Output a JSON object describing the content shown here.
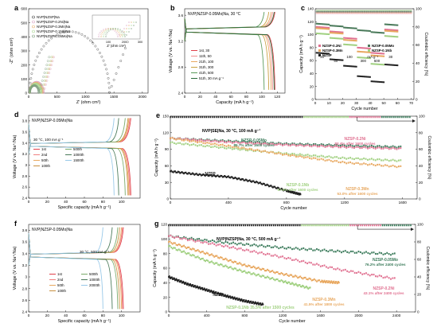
{
  "chart_data": [
    {
      "panel": "a",
      "type": "scatter",
      "xlabel": "Z′ (ohm cm²)",
      "ylabel": "-Z″ (ohm cm²)",
      "xlim": [
        0,
        2100
      ],
      "ylim": [
        0,
        600
      ],
      "xticks": [
        0,
        500,
        1000,
        1500,
        2000
      ],
      "yticks": [
        0,
        100,
        200,
        300,
        400,
        500,
        600
      ],
      "inset_xlabel": "Z′ (ohm cm²)",
      "inset_xticks": [
        0,
        100,
        200,
        300
      ],
      "series": [
        {
          "name": "NVP|NZSP|Na",
          "color": "#444444"
        },
        {
          "name": "NVP|NZSP-0.2Ni|Na",
          "color": "#d9a0c0"
        },
        {
          "name": "NVP|NZSP-0.3Mn|Na",
          "color": "#e8b070"
        },
        {
          "name": "NVP|NZSP-0.1Nb|Na",
          "color": "#a8d890"
        },
        {
          "name": "NVP|NZSP-0.05Mo|Na",
          "color": "#7a9a7a"
        }
      ]
    },
    {
      "panel": "b",
      "type": "line",
      "title": "NVP|NZSP-0.05Mo|Na, 30 °C",
      "xlabel": "Capacity (mA h g⁻¹)",
      "ylabel": "Voltage (V vs. Na⁺/Na)",
      "xlim": [
        0,
        130
      ],
      "ylim": [
        2.4,
        3.7
      ],
      "xticks": [
        0,
        20,
        40,
        60,
        80,
        100,
        120
      ],
      "yticks": [
        2.4,
        2.8,
        3.2,
        3.6
      ],
      "legend": [
        "1st, 30",
        "11th, 50",
        "21th, 100",
        "31th, 300",
        "41th, 500",
        "51th, 30 mA g⁻¹"
      ],
      "discharge_capacity": [
        117,
        114,
        112,
        109,
        103,
        116
      ],
      "colors": [
        "#e0404a",
        "#f09090",
        "#e8a860",
        "#c8a040",
        "#5a9a5a",
        "#2a6a3a"
      ]
    },
    {
      "panel": "c",
      "type": "scatter",
      "xlabel": "Cycle number",
      "ylabel": "Capacity (mA h g⁻¹)",
      "y2label": "Coulombic efficiency (%)",
      "xlim": [
        0,
        72
      ],
      "ylim": [
        0,
        140
      ],
      "y2lim": [
        0,
        100
      ],
      "xticks": [
        0,
        10,
        20,
        30,
        40,
        50,
        60,
        70
      ],
      "yticks": [
        0,
        20,
        40,
        60,
        80,
        100,
        120,
        140
      ],
      "y2ticks": [
        0,
        20,
        40,
        60,
        80,
        100
      ],
      "rates": [
        "30",
        "50",
        "100",
        "300",
        "mA g⁻¹",
        "500",
        "30"
      ],
      "rate_cycles": [
        5,
        15,
        25,
        35,
        42,
        45,
        55
      ],
      "series": [
        {
          "name": "NZSP-0.2Ni",
          "color": "#e07090",
          "values": [
            112,
            105,
            95,
            80,
            72,
            108
          ]
        },
        {
          "name": "NZSP-0.3Mn",
          "color": "#e8a860",
          "values": [
            110,
            103,
            92,
            74,
            68,
            106
          ]
        },
        {
          "name": "NZSP",
          "color": "#222222",
          "values": [
            72,
            62,
            52,
            36,
            28,
            54
          ]
        },
        {
          "name": "NZSP-0.05Mo",
          "color": "#4a7a5a",
          "values": [
            117,
            114,
            111,
            107,
            104,
            116
          ]
        },
        {
          "name": "NZSP-0.1Nb",
          "color": "#a0d080",
          "values": [
            102,
            95,
            85,
            65,
            55,
            98
          ]
        }
      ]
    },
    {
      "panel": "d",
      "type": "line",
      "title": "NVP|NZSP-0.05Mo|Na",
      "note": "30 °C, 100 mA g⁻¹",
      "xlabel": "Specific capacity (mA h g⁻¹)",
      "ylabel": "Voltage (V vs. Na⁺/Na)",
      "xlim": [
        0,
        120
      ],
      "ylim": [
        2.4,
        3.9
      ],
      "xticks": [
        0,
        20,
        40,
        60,
        80,
        100
      ],
      "yticks": [
        2.4,
        2.6,
        2.8,
        3.0,
        3.2,
        3.4,
        3.6,
        3.8
      ],
      "legend": [
        "1st",
        "2nd",
        "50th",
        "100th",
        "500th",
        "1000th",
        "1500th"
      ],
      "discharge_capacity": [
        110,
        109,
        108,
        107,
        104,
        97,
        92
      ],
      "colors": [
        "#e0404a",
        "#f08080",
        "#e8a860",
        "#c89040",
        "#7aaa6a",
        "#4a7a5a",
        "#98c8e8"
      ]
    },
    {
      "panel": "e",
      "type": "scatter",
      "title": "NVP|SE|Na, 30 °C, 100 mA g⁻¹",
      "xlabel": "Cycle number",
      "ylabel": "Capacity (mA h g⁻¹)",
      "y2label": "Coulombic efficiency (%)",
      "xlim": [
        0,
        1700
      ],
      "ylim": [
        0,
        150
      ],
      "y2lim": [
        0,
        100
      ],
      "xticks": [
        0,
        400,
        800,
        1200,
        1600
      ],
      "yticks": [
        0,
        30,
        60,
        90,
        120,
        150
      ],
      "y2ticks": [
        0,
        20,
        40,
        60,
        80,
        100
      ],
      "annotations": [
        {
          "text": "NZSP-0.05Mo",
          "sub": "85.7% after 1600 cycles",
          "color": "#3a7a5a"
        },
        {
          "text": "NZSP-0.2Ni",
          "sub": "83.4% after 1600 cycles",
          "color": "#e07090"
        },
        {
          "text": "NZSP",
          "sub": "",
          "color": "#222222"
        },
        {
          "text": "NZSP-0.1Nb",
          "sub": "67.6% after 1600 cycles",
          "color": "#a0d080"
        },
        {
          "text": "NZSP-0.3Mn",
          "sub": "53.0% after 1600 cycles",
          "color": "#e8a860"
        }
      ],
      "series": [
        {
          "name": "NZSP-0.05Mo",
          "color": "#3a7a5a",
          "x": [
            0,
            400,
            800,
            1200,
            1600
          ],
          "y": [
            110,
            105,
            100,
            97,
            94
          ]
        },
        {
          "name": "NZSP-0.2Ni",
          "color": "#e07090",
          "x": [
            0,
            400,
            800,
            1200,
            1600
          ],
          "y": [
            110,
            103,
            98,
            94,
            91
          ]
        },
        {
          "name": "NZSP-0.1Nb",
          "color": "#a0d080",
          "x": [
            0,
            400,
            800,
            1200,
            1600
          ],
          "y": [
            102,
            92,
            82,
            74,
            69
          ]
        },
        {
          "name": "NZSP-0.3Mn",
          "color": "#e8a860",
          "x": [
            0,
            400,
            800,
            1200,
            1600
          ],
          "y": [
            110,
            96,
            80,
            66,
            58
          ]
        },
        {
          "name": "NZSP",
          "color": "#222222",
          "x": [
            0,
            200,
            400,
            600,
            800,
            900
          ],
          "y": [
            50,
            44,
            40,
            30,
            15,
            8
          ]
        }
      ]
    },
    {
      "panel": "f",
      "type": "line",
      "title": "NVP|NZSP-0.05Mo|Na",
      "note": "30 °C, 500 mA g⁻¹",
      "xlabel": "Specific capacity (mA h g⁻¹)",
      "ylabel": "Voltage (V vs. Na⁺/Na)",
      "xlim": [
        0,
        120
      ],
      "ylim": [
        2.4,
        3.9
      ],
      "xticks": [
        0,
        20,
        40,
        60,
        80,
        100
      ],
      "yticks": [
        2.4,
        2.6,
        2.8,
        3.0,
        3.2,
        3.4,
        3.6,
        3.8
      ],
      "legend": [
        "1st",
        "2nd",
        "50th",
        "100th",
        "500th",
        "1000th",
        "2000th"
      ],
      "discharge_capacity": [
        102,
        101,
        100,
        98,
        96,
        90,
        80
      ],
      "colors": [
        "#e0404a",
        "#f08080",
        "#e8a860",
        "#c89040",
        "#7aaa6a",
        "#4a7a5a",
        "#98c8e8"
      ]
    },
    {
      "panel": "g",
      "type": "scatter",
      "title": "NVP|NZSP|Na, 30 °C, 500 mA g⁻¹",
      "xlabel": "Cycle number",
      "ylabel": "Capacity (mA h g⁻¹)",
      "y2label": "Coulombic efficiency (%)",
      "xlim": [
        0,
        2600
      ],
      "ylim": [
        0,
        120
      ],
      "y2lim": [
        0,
        100
      ],
      "xticks": [
        0,
        400,
        800,
        1200,
        1600,
        2000,
        2400
      ],
      "yticks": [
        0,
        20,
        40,
        60,
        80,
        100,
        120
      ],
      "y2ticks": [
        0,
        20,
        40,
        60,
        80,
        100
      ],
      "annotations": [
        {
          "text": "NZSP-0.05Mo",
          "sub": "76.2% after 2400 cycles",
          "color": "#3a7a5a"
        },
        {
          "text": "NZSP-0.2Ni",
          "sub": "43.1% after 2400 cycles",
          "color": "#e07090"
        },
        {
          "text": "NZSP",
          "sub": "",
          "color": "#222222"
        },
        {
          "text": "NZSP-0.1Nb 35.5% after 1500 cycles",
          "sub": "",
          "color": "#a0d080"
        },
        {
          "text": "NZSP-0.3Mn",
          "sub": "41.5% after 1800 cycles",
          "color": "#e8a860"
        }
      ],
      "series": [
        {
          "name": "NZSP-0.05Mo",
          "color": "#3a7a5a",
          "x": [
            0,
            600,
            1200,
            1800,
            2400
          ],
          "y": [
            104,
            95,
            88,
            83,
            79
          ]
        },
        {
          "name": "NZSP-0.2Ni",
          "color": "#e07090",
          "x": [
            0,
            600,
            1200,
            1800,
            2400
          ],
          "y": [
            104,
            90,
            75,
            58,
            45
          ]
        },
        {
          "name": "NZSP-0.3Mn",
          "color": "#e8a860",
          "x": [
            0,
            400,
            800,
            1200,
            1600,
            1800
          ],
          "y": [
            96,
            80,
            64,
            52,
            42,
            40
          ]
        },
        {
          "name": "NZSP-0.1Nb",
          "color": "#a0d080",
          "x": [
            0,
            400,
            800,
            1200,
            1500
          ],
          "y": [
            90,
            70,
            55,
            42,
            32
          ]
        },
        {
          "name": "NZSP",
          "color": "#222222",
          "x": [
            0,
            200,
            400,
            600,
            800,
            1000
          ],
          "y": [
            48,
            38,
            30,
            22,
            15,
            10
          ]
        }
      ]
    }
  ]
}
